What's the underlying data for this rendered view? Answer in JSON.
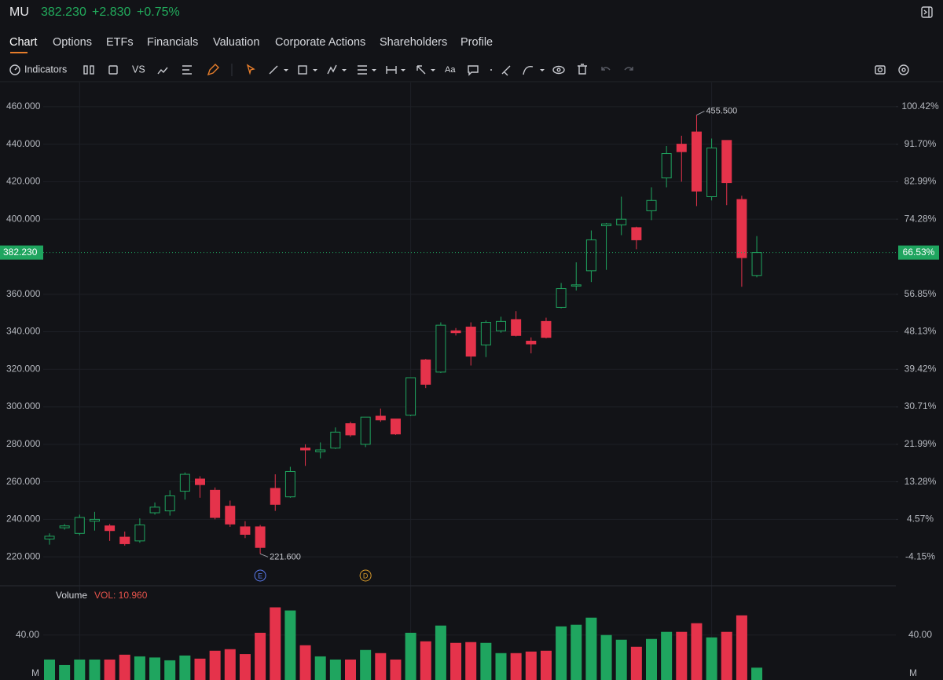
{
  "header": {
    "symbol": "MU",
    "price": "382.230",
    "change": "+2.830",
    "change_pct": "+0.75%"
  },
  "tabs": {
    "items": [
      "Chart",
      "Options",
      "ETFs",
      "Financials",
      "Valuation",
      "Corporate Actions",
      "Shareholders",
      "Profile"
    ],
    "active": 0
  },
  "toolbar": {
    "indicators": "Indicators",
    "compare": "VS",
    "text_tool": "Aa"
  },
  "chart_data": {
    "type": "candlestick",
    "up_color": "#1fa55f",
    "down_color": "#e5334b",
    "open": [
      229.5,
      235.5,
      232.5,
      239,
      236.5,
      230.5,
      228.5,
      243.5,
      244.5,
      255,
      261.5,
      255.5,
      247,
      236,
      236,
      256.5,
      252,
      278,
      276,
      278,
      291,
      280,
      295,
      293.5,
      295.5,
      325,
      318.5,
      340.5,
      342.5,
      333,
      340.5,
      346.5,
      335,
      345.5,
      353,
      364.5,
      372.5,
      396.5,
      397,
      395.5,
      404.5,
      422,
      440,
      446.5,
      412,
      442,
      410.5,
      370
    ],
    "high": [
      232.5,
      237.5,
      242.5,
      244,
      237.5,
      233.5,
      240.5,
      249,
      255.5,
      265,
      263,
      257,
      250,
      239,
      237,
      264,
      268,
      280,
      281,
      289,
      292,
      294.5,
      299,
      293.5,
      315.5,
      325.5,
      345,
      342,
      345,
      346,
      348,
      351,
      337,
      347.5,
      366,
      377,
      394,
      398,
      412,
      396,
      417,
      439,
      444.5,
      455.5,
      443,
      442,
      412.5,
      391
    ],
    "low": [
      226.5,
      234.5,
      231.5,
      234,
      228.5,
      226,
      227.5,
      242.5,
      242,
      250.5,
      251.5,
      240,
      236,
      230,
      221.6,
      244.5,
      251.5,
      268.5,
      272.5,
      277.5,
      284,
      278.5,
      292,
      285,
      295,
      310,
      318,
      338,
      322,
      326.5,
      339.5,
      337.5,
      328.5,
      336.5,
      352.5,
      362,
      366.5,
      373,
      391.5,
      384,
      399.5,
      417,
      420,
      407,
      410,
      407.5,
      364,
      369
    ],
    "close": [
      231,
      236.5,
      241,
      240,
      234,
      227,
      237,
      246.5,
      252.5,
      264,
      258.5,
      241,
      237.5,
      232,
      225,
      248,
      265.5,
      277,
      277,
      286.5,
      285,
      294.5,
      293,
      285.5,
      315.5,
      312,
      343.5,
      339.5,
      327,
      345,
      345.5,
      338,
      333.5,
      337,
      363,
      365,
      389,
      397.5,
      400,
      389,
      410,
      435,
      436,
      415,
      438,
      419.5,
      379.5,
      382.23
    ],
    "ylim": [
      205,
      475
    ],
    "yticks": [
      {
        "value": 460,
        "label": "460.000"
      },
      {
        "value": 440,
        "label": "440.000"
      },
      {
        "value": 420,
        "label": "420.000"
      },
      {
        "value": 400,
        "label": "400.000"
      },
      {
        "value": 360,
        "label": "360.000"
      },
      {
        "value": 340,
        "label": "340.000"
      },
      {
        "value": 320,
        "label": "320.000"
      },
      {
        "value": 300,
        "label": "300.000"
      },
      {
        "value": 280,
        "label": "280.000"
      },
      {
        "value": 260,
        "label": "260.000"
      },
      {
        "value": 240,
        "label": "240.000"
      },
      {
        "value": 220,
        "label": "220.000"
      }
    ],
    "y2lim": [
      -10.68,
      106.95
    ],
    "y2ticks": [
      {
        "value": 100.42,
        "label": "100.42%"
      },
      {
        "value": 91.7,
        "label": "91.70%"
      },
      {
        "value": 82.99,
        "label": "82.99%"
      },
      {
        "value": 74.28,
        "label": "74.28%"
      },
      {
        "value": 56.85,
        "label": "56.85%"
      },
      {
        "value": 48.13,
        "label": "48.13%"
      },
      {
        "value": 39.42,
        "label": "39.42%"
      },
      {
        "value": 30.71,
        "label": "30.71%"
      },
      {
        "value": 21.99,
        "label": "21.99%"
      },
      {
        "value": 13.28,
        "label": "13.28%"
      },
      {
        "value": 4.57,
        "label": "4.57%"
      },
      {
        "value": -4.15,
        "label": "-4.15%"
      }
    ],
    "grid": true,
    "vgrid_indices": [
      2,
      24,
      44
    ],
    "price_line": {
      "value": 382.23,
      "label": "382.230",
      "y2_value": 66.53,
      "y2_label": "66.53%"
    },
    "annotations": [
      {
        "index": 43,
        "value": 455.5,
        "label": "455.500"
      },
      {
        "index": 14,
        "value": 221.6,
        "label": "221.600"
      }
    ],
    "events": [
      {
        "index": 14,
        "label": "E",
        "color": "#5b7cf0"
      },
      {
        "index": 21,
        "label": "D",
        "color": "#d79a2b"
      }
    ],
    "volume": {
      "title": "Volume",
      "readout": "VOL: 10.960",
      "unit": "M",
      "values": [
        18.2,
        13.3,
        18.2,
        18.2,
        18.2,
        22.5,
        21,
        20,
        17.5,
        21.8,
        19,
        26,
        27.4,
        23,
        42,
        64.6,
        61.8,
        30.9,
        21,
        18.2,
        18.2,
        26.7,
        23.9,
        18.2,
        42,
        34.4,
        48.4,
        33,
        33.7,
        33,
        23.9,
        23.9,
        25.3,
        26,
        47.7,
        49.1,
        55.4,
        40,
        35.8,
        29.5,
        36.5,
        42.8,
        42.8,
        50.5,
        37.9,
        42.8,
        57.5,
        10.96
      ],
      "ylim": [
        0,
        81
      ],
      "yticks": [
        {
          "value": 40,
          "label": "40.00"
        }
      ]
    }
  }
}
